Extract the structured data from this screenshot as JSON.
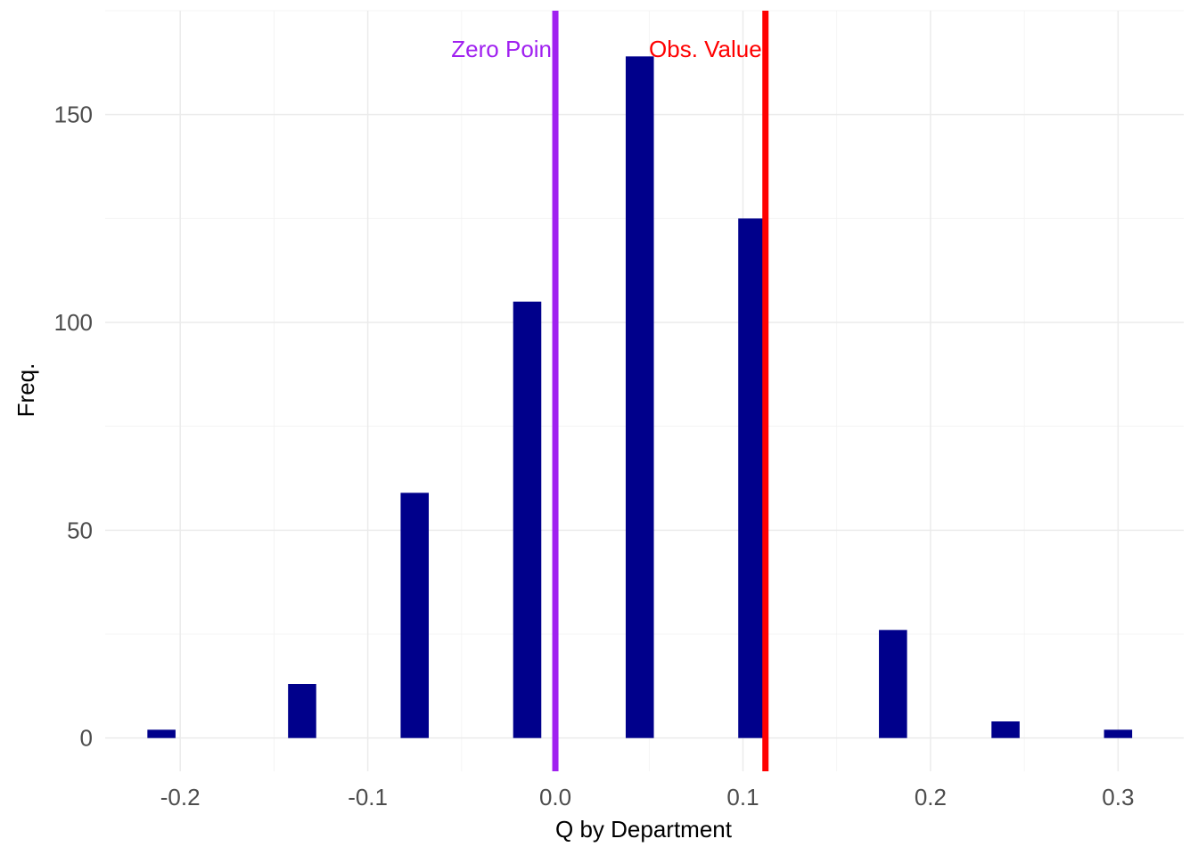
{
  "chart_data": {
    "type": "bar",
    "title": "",
    "xlabel": "Q by Department",
    "ylabel": "Freq.",
    "xlim": [
      -0.24,
      0.335
    ],
    "ylim": [
      -8,
      175
    ],
    "x_ticks": [
      {
        "value": -0.2,
        "label": "-0.2"
      },
      {
        "value": -0.1,
        "label": "-0.1"
      },
      {
        "value": 0.0,
        "label": "0.0"
      },
      {
        "value": 0.1,
        "label": "0.1"
      },
      {
        "value": 0.2,
        "label": "0.2"
      },
      {
        "value": 0.3,
        "label": "0.3"
      }
    ],
    "y_ticks": [
      {
        "value": 0,
        "label": "0"
      },
      {
        "value": 50,
        "label": "50"
      },
      {
        "value": 100,
        "label": "100"
      },
      {
        "value": 150,
        "label": "150"
      }
    ],
    "bin_width": 0.015,
    "x": [
      -0.21,
      -0.135,
      -0.075,
      -0.015,
      0.045,
      0.105,
      0.18,
      0.24,
      0.3
    ],
    "values": [
      2,
      13,
      59,
      105,
      164,
      125,
      26,
      4,
      2
    ],
    "grid": true,
    "bar_color": "#00008B",
    "reference_lines": [
      {
        "label": "Zero Poin",
        "x": 0.0,
        "color": "#A020F0"
      },
      {
        "label": "Obs. Value",
        "x": 0.112,
        "color": "#FF0000"
      }
    ]
  }
}
